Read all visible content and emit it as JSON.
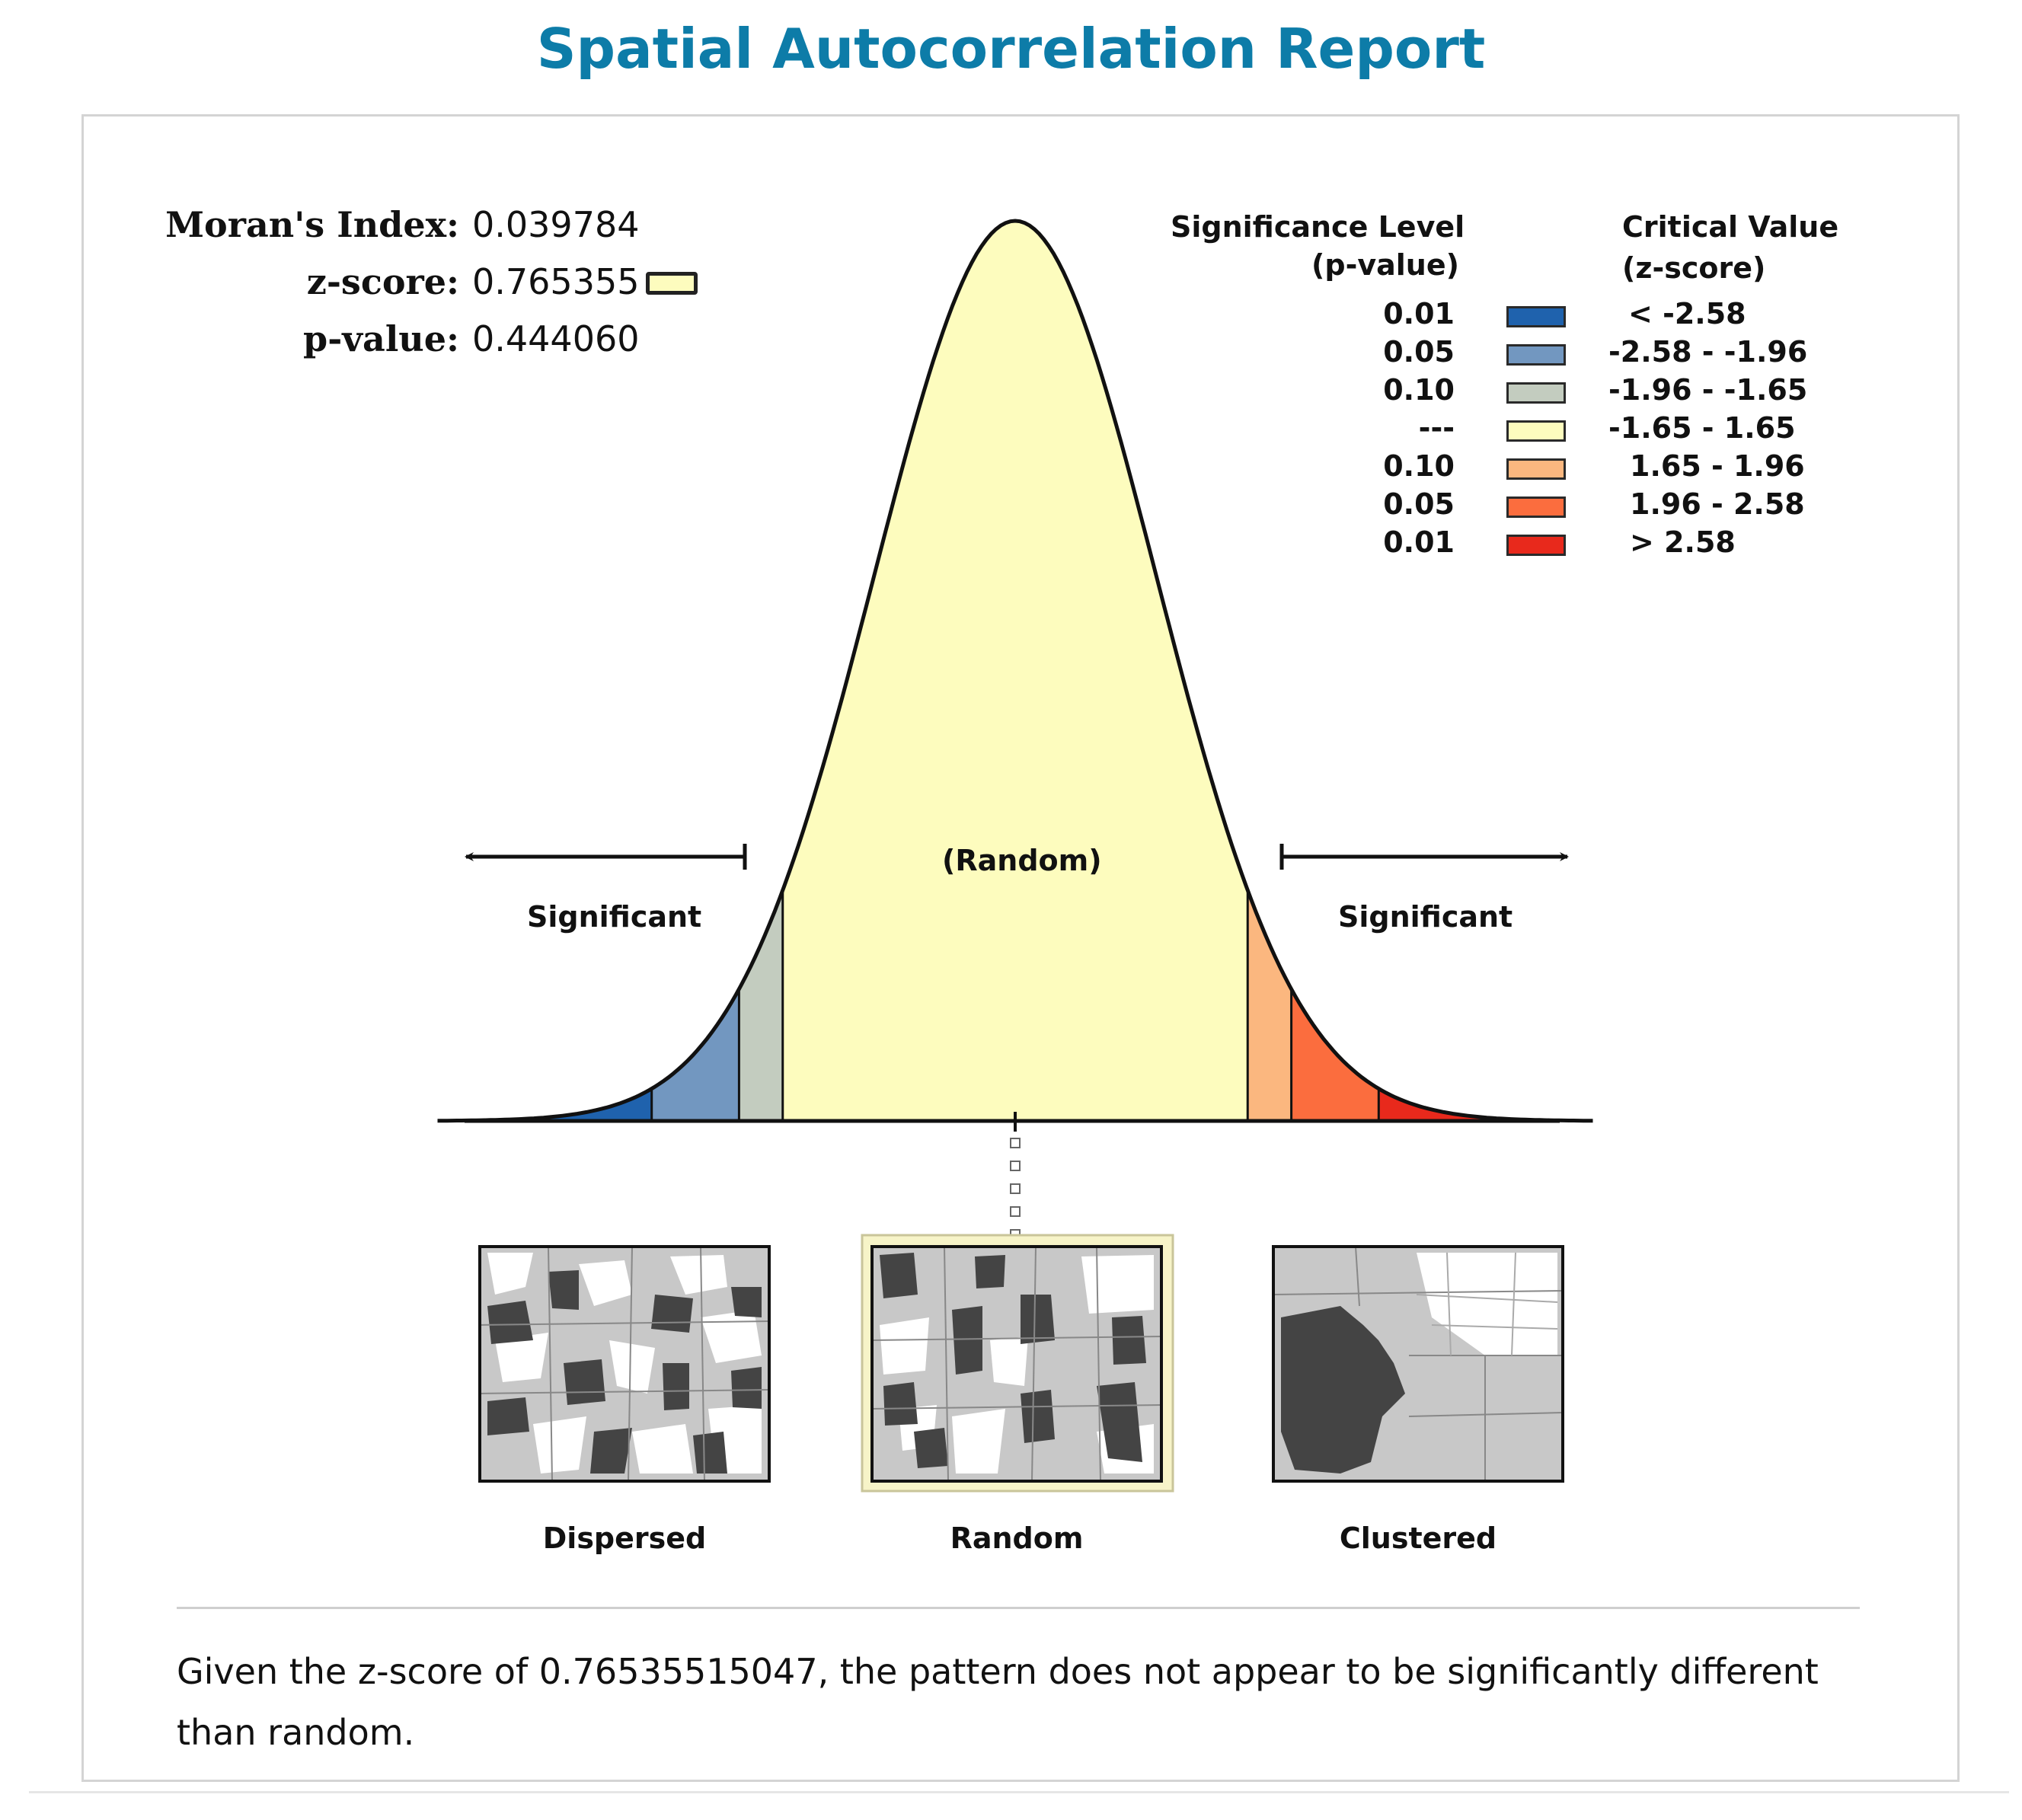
{
  "report": {
    "title": "Spatial Autocorrelation Report"
  },
  "stats": {
    "morans_index_label": "Moran's Index:",
    "morans_index_value": "0.039784",
    "z_score_label": "z-score:",
    "z_score_value": "0.765355",
    "p_value_label": "p-value:",
    "p_value_value": "0.444060"
  },
  "legend": {
    "sig_header_1": "Significance Level",
    "sig_header_2": "(p-value)",
    "crit_header_1": "Critical Value",
    "crit_header_2": "(z-score)",
    "rows": [
      {
        "p": "0.01",
        "z": "< -2.58",
        "color": "#1f62ad"
      },
      {
        "p": "0.05",
        "z": "-2.58 - -1.96",
        "color": "#7297c0"
      },
      {
        "p": "0.10",
        "z": "-1.96 - -1.65",
        "color": "#c3ccbf"
      },
      {
        "p": "---",
        "z": "-1.65 - 1.65",
        "color": "#fdfcbe"
      },
      {
        "p": "0.10",
        "z": "1.65 - 1.96",
        "color": "#fbb77f"
      },
      {
        "p": "0.05",
        "z": "1.96 - 2.58",
        "color": "#fb6d3e"
      },
      {
        "p": "0.01",
        "z": "> 2.58",
        "color": "#e8291c"
      }
    ]
  },
  "chart_data": {
    "type": "area",
    "z_score": 0.765355,
    "critical_values": [
      -2.58,
      -1.96,
      -1.65,
      1.65,
      1.96,
      2.58
    ],
    "regions": [
      {
        "from": -4,
        "to": -2.58,
        "color": "#1f62ad"
      },
      {
        "from": -2.58,
        "to": -1.96,
        "color": "#7297c0"
      },
      {
        "from": -1.96,
        "to": -1.65,
        "color": "#c3ccbf"
      },
      {
        "from": -1.65,
        "to": 1.65,
        "color": "#fdfcbe"
      },
      {
        "from": 1.65,
        "to": 1.96,
        "color": "#fbb77f"
      },
      {
        "from": 1.96,
        "to": 2.58,
        "color": "#fb6d3e"
      },
      {
        "from": 2.58,
        "to": 4,
        "color": "#e8291c"
      }
    ],
    "annotations": {
      "random": "(Random)",
      "significant_left": "Significant",
      "significant_right": "Significant"
    }
  },
  "patterns": {
    "dispersed": "Dispersed",
    "random": "Random",
    "clustered": "Clustered",
    "selected": "random"
  },
  "summary": {
    "text": "Given the z-score of 0.76535515047, the pattern does not appear to be significantly different than random."
  }
}
